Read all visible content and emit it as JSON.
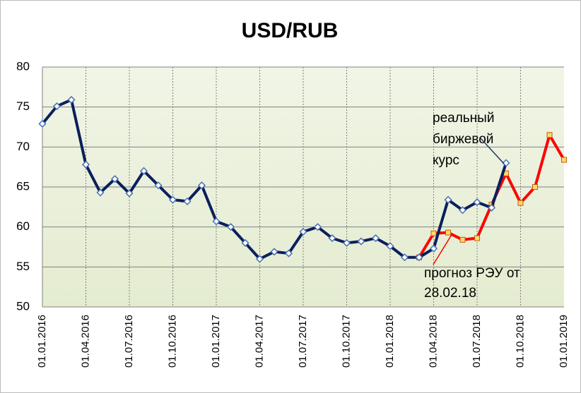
{
  "chart_data": {
    "type": "line",
    "title": "USD/RUB",
    "categories": [
      "01.01.2016",
      null,
      null,
      "01.04.2016",
      null,
      null,
      "01.07.2016",
      null,
      null,
      "01.10.2016",
      null,
      null,
      "01.01.2017",
      null,
      null,
      "01.04.2017",
      null,
      null,
      "01.07.2017",
      null,
      null,
      "01.10.2017",
      null,
      null,
      "01.01.2018",
      null,
      null,
      "01.04.2018",
      null,
      null,
      "01.07.2018",
      null,
      null,
      "01.10.2018",
      null,
      null,
      "01.01.2019"
    ],
    "series": [
      {
        "name": "прогноз РЭУ от 28.02.18",
        "color": "#ff0000",
        "marker": "square",
        "values": [
          null,
          null,
          null,
          null,
          null,
          null,
          null,
          null,
          null,
          null,
          null,
          null,
          null,
          null,
          null,
          null,
          null,
          null,
          null,
          null,
          null,
          null,
          null,
          null,
          null,
          null,
          56.2,
          59.2,
          59.3,
          58.4,
          58.6,
          62.8,
          66.7,
          63.0,
          65.0,
          71.5,
          68.4
        ]
      },
      {
        "name": "реальный биржевой курс",
        "color": "#0a1f5c",
        "marker": "diamond",
        "values": [
          72.9,
          75.1,
          75.9,
          67.8,
          64.3,
          66.0,
          64.2,
          67.0,
          65.2,
          63.4,
          63.2,
          65.2,
          60.7,
          60.0,
          58.0,
          56.0,
          56.9,
          56.7,
          59.4,
          60.0,
          58.6,
          58.0,
          58.2,
          58.6,
          57.6,
          56.2,
          56.2,
          57.3,
          63.4,
          62.1,
          63.1,
          62.4,
          68.0,
          null,
          null,
          null,
          null
        ]
      }
    ],
    "annotations": [
      [
        "реальный",
        "биржевой",
        "курс"
      ],
      [
        "прогноз РЭУ от",
        "28.02.18"
      ]
    ],
    "ylim": [
      50,
      80
    ],
    "yticks": [
      50,
      55,
      60,
      65,
      70,
      75,
      80
    ],
    "grid": true
  }
}
